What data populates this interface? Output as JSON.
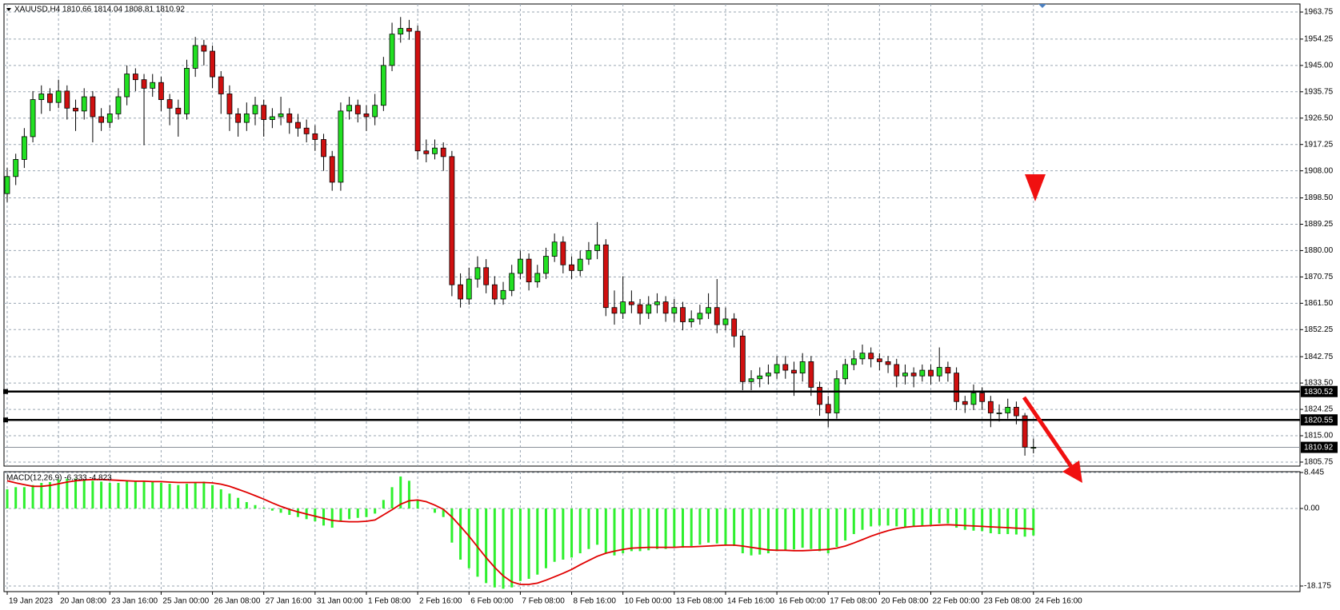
{
  "chart_data": [
    {
      "type": "candlestick",
      "title": "XAUUSD,H4  1810.66 1814.04 1808.81 1810.92",
      "categories": [
        "19 Jan 2023",
        null,
        null,
        null,
        null,
        null,
        "20 Jan 08:00",
        null,
        null,
        null,
        null,
        null,
        "23 Jan 16:00",
        null,
        null,
        null,
        null,
        null,
        "25 Jan 00:00",
        null,
        null,
        null,
        null,
        null,
        "26 Jan 08:00",
        null,
        null,
        null,
        null,
        null,
        "27 Jan 16:00",
        null,
        null,
        null,
        null,
        null,
        "31 Jan 00:00",
        null,
        null,
        null,
        null,
        null,
        "1 Feb 08:00",
        null,
        null,
        null,
        null,
        null,
        "2 Feb 16:00",
        null,
        null,
        null,
        null,
        null,
        "6 Feb 00:00",
        null,
        null,
        null,
        null,
        null,
        "7 Feb 08:00",
        null,
        null,
        null,
        null,
        null,
        "8 Feb 16:00",
        null,
        null,
        null,
        null,
        null,
        "10 Feb 00:00",
        null,
        null,
        null,
        null,
        null,
        "13 Feb 08:00",
        null,
        null,
        null,
        null,
        null,
        "14 Feb 16:00",
        null,
        null,
        null,
        null,
        null,
        "16 Feb 00:00",
        null,
        null,
        null,
        null,
        null,
        "17 Feb 08:00",
        null,
        null,
        null,
        null,
        null,
        "20 Feb 08:00",
        null,
        null,
        null,
        null,
        null,
        "22 Feb 00:00",
        null,
        null,
        null,
        null,
        null,
        "23 Feb 08:00",
        null,
        null,
        null,
        null,
        null,
        "24 Feb 16:00"
      ],
      "open": [
        1900,
        1906,
        1912,
        1920,
        1933,
        1935,
        1932,
        1936,
        1930,
        1929,
        1934,
        1927,
        1925,
        1928,
        1934,
        1942,
        1940,
        1937,
        1939,
        1933,
        1930,
        1928,
        1944,
        1952,
        1950,
        1941,
        1935,
        1928,
        1925,
        1928,
        1931,
        1926,
        1927,
        1928,
        1925,
        1923,
        1921,
        1919,
        1913,
        1904,
        1929,
        1931,
        1928,
        1927,
        1931,
        1945,
        1956,
        1958,
        1957,
        1915,
        1914,
        1916,
        1913,
        1868,
        1863,
        1870,
        1874,
        1868,
        1863,
        1866,
        1872,
        1877,
        1869,
        1872,
        1878,
        1883,
        1875,
        1873,
        1877,
        1880,
        1882,
        1860,
        1858,
        1862,
        1861,
        1858,
        1861,
        1862,
        1858,
        1860,
        1855,
        1856,
        1858,
        1860,
        1854,
        1856,
        1850,
        1834,
        1835,
        1836,
        1837,
        1840,
        1838,
        1837,
        1841,
        1832,
        1826,
        1823,
        1835,
        1840,
        1842,
        1844,
        1842,
        1841,
        1840,
        1836,
        1837,
        1836,
        1838,
        1836,
        1839,
        1837,
        1827,
        1826,
        1830,
        1827,
        1823,
        1823,
        1825,
        1822,
        1810.66
      ],
      "high": [
        1909,
        1914,
        1923,
        1936,
        1938,
        1937,
        1940,
        1938,
        1933,
        1937,
        1936,
        1930,
        1931,
        1937,
        1945,
        1944,
        1942,
        1942,
        1941,
        1935,
        1933,
        1947,
        1955,
        1954,
        1952,
        1943,
        1938,
        1930,
        1932,
        1934,
        1933,
        1930,
        1934,
        1930,
        1928,
        1926,
        1924,
        1921,
        1915,
        1932,
        1934,
        1933,
        1931,
        1935,
        1948,
        1960,
        1962,
        1961,
        1959,
        1919,
        1919,
        1918,
        1915,
        1872,
        1874,
        1878,
        1877,
        1871,
        1869,
        1875,
        1880,
        1879,
        1875,
        1881,
        1886,
        1885,
        1878,
        1880,
        1883,
        1890,
        1884,
        1866,
        1871,
        1866,
        1863,
        1864,
        1865,
        1864,
        1863,
        1862,
        1859,
        1861,
        1865,
        1870,
        1860,
        1858,
        1852,
        1838,
        1839,
        1840,
        1843,
        1843,
        1841,
        1844,
        1843,
        1834,
        1829,
        1838,
        1842,
        1845,
        1847,
        1846,
        1844,
        1843,
        1842,
        1840,
        1839,
        1840,
        1840,
        1846,
        1841,
        1839,
        1829,
        1833,
        1832,
        1829,
        1826,
        1828,
        1827,
        1823,
        1814.04
      ],
      "low": [
        1897,
        1903,
        1909,
        1918,
        1928,
        1929,
        1930,
        1926,
        1922,
        1926,
        1918,
        1922,
        1923,
        1926,
        1931,
        1936,
        1917,
        1934,
        1929,
        1924,
        1920,
        1926,
        1941,
        1945,
        1937,
        1928,
        1922,
        1920,
        1922,
        1924,
        1920,
        1923,
        1924,
        1921,
        1920,
        1918,
        1915,
        1908,
        1901,
        1901,
        1926,
        1925,
        1922,
        1924,
        1929,
        1943,
        1953,
        1954,
        1912,
        1911,
        1912,
        1908,
        1864,
        1860,
        1861,
        1867,
        1865,
        1861,
        1861,
        1864,
        1870,
        1866,
        1867,
        1870,
        1876,
        1872,
        1870,
        1871,
        1875,
        1877,
        1857,
        1854,
        1856,
        1858,
        1854,
        1856,
        1858,
        1855,
        1855,
        1852,
        1853,
        1854,
        1856,
        1851,
        1852,
        1846,
        1831,
        1831,
        1832,
        1833,
        1835,
        1835,
        1829,
        1834,
        1829,
        1822,
        1818,
        1821,
        1833,
        1838,
        1840,
        1839,
        1838,
        1837,
        1832,
        1833,
        1832,
        1834,
        1833,
        1834,
        1834,
        1824,
        1823,
        1824,
        1824,
        1818,
        1820,
        1821,
        1819,
        1808,
        1808.81
      ],
      "close": [
        1906,
        1912,
        1920,
        1933,
        1935,
        1932,
        1936,
        1930,
        1929,
        1934,
        1927,
        1925,
        1928,
        1934,
        1942,
        1940,
        1937,
        1939,
        1933,
        1930,
        1928,
        1944,
        1952,
        1950,
        1941,
        1935,
        1928,
        1925,
        1928,
        1931,
        1926,
        1927,
        1928,
        1925,
        1923,
        1921,
        1919,
        1913,
        1904,
        1929,
        1931,
        1928,
        1927,
        1931,
        1945,
        1956,
        1958,
        1957,
        1915,
        1914,
        1916,
        1913,
        1868,
        1863,
        1870,
        1874,
        1868,
        1863,
        1866,
        1872,
        1877,
        1869,
        1872,
        1878,
        1883,
        1875,
        1873,
        1877,
        1880,
        1882,
        1860,
        1858,
        1862,
        1861,
        1858,
        1861,
        1862,
        1858,
        1860,
        1855,
        1856,
        1858,
        1860,
        1854,
        1856,
        1850,
        1834,
        1835,
        1836,
        1837,
        1840,
        1838,
        1837,
        1841,
        1832,
        1826,
        1823,
        1835,
        1840,
        1842,
        1844,
        1842,
        1841,
        1840,
        1836,
        1837,
        1836,
        1838,
        1836,
        1839,
        1837,
        1827,
        1826,
        1830,
        1827,
        1823,
        1823,
        1825,
        1822,
        1811,
        1810.92
      ],
      "up_color": "#22e022",
      "down_color": "#d01010",
      "ylim": [
        1804.34,
        1966.57
      ],
      "yticks": [
        1963.75,
        1954.25,
        {
          "value": 1945,
          "label": "1945.00"
        },
        1935.75,
        {
          "value": 1926.5,
          "label": "1926.50"
        },
        1917.25,
        {
          "value": 1908,
          "label": "1908.00"
        },
        {
          "value": 1898.5,
          "label": "1898.50"
        },
        1889.25,
        {
          "value": 1880,
          "label": "1880.00"
        },
        1870.75,
        {
          "value": 1861.5,
          "label": "1861.50"
        },
        1852.25,
        1842.75,
        {
          "value": 1833.5,
          "label": "1833.50"
        },
        1824.25,
        {
          "value": 1815,
          "label": "1815.00"
        },
        1805.75
      ],
      "hlines": [
        1830.52,
        1820.55
      ],
      "grid": true
    },
    {
      "type": "macd",
      "title": "MACD(12,26,9) -6.333 -4.823",
      "values": [
        4.5,
        5,
        5,
        5.5,
        6,
        6.2,
        6.8,
        7,
        7,
        6.8,
        6.5,
        6.3,
        6,
        6,
        6.4,
        6.5,
        6.3,
        6.3,
        6,
        5.8,
        5.5,
        5.8,
        6.2,
        6.3,
        5.5,
        4.5,
        3.5,
        2.5,
        1.5,
        0.8,
        0.2,
        -0.5,
        -1,
        -1.5,
        -2,
        -2.5,
        -3,
        -4,
        -4.5,
        -3,
        -2.5,
        -2.2,
        -2,
        -1.2,
        2,
        5,
        7.5,
        6.5,
        2,
        0,
        -1,
        -2,
        -8,
        -12,
        -14,
        -16,
        -17.5,
        -18.5,
        -18.8,
        -18.5,
        -17,
        -16.5,
        -15.5,
        -14,
        -12.5,
        -12,
        -11.5,
        -10.5,
        -9.5,
        -8.5,
        -10.5,
        -11,
        -10.5,
        -10,
        -10,
        -9.8,
        -9.5,
        -9.5,
        -9,
        -9.2,
        -8.8,
        -8.5,
        -8,
        -8.2,
        -8.5,
        -8.8,
        -10.5,
        -11,
        -10.8,
        -10.5,
        -10,
        -9.8,
        -9.6,
        -9.2,
        -9.5,
        -10,
        -10.5,
        -9,
        -7.5,
        -6,
        -5,
        -4.2,
        -4,
        -4,
        -4.2,
        -4.3,
        -4.2,
        -4,
        -3.8,
        -3.5,
        -3.5,
        -4.5,
        -5,
        -5.2,
        -5.3,
        -5.8,
        -6,
        -6,
        -6.1,
        -6.6,
        -6.333
      ],
      "signal": [
        6.5,
        6,
        5.6,
        5.2,
        5.2,
        5.4,
        5.8,
        6.2,
        6.5,
        6.7,
        6.8,
        6.8,
        6.7,
        6.6,
        6.5,
        6.4,
        6.4,
        6.3,
        6.3,
        6.2,
        6.1,
        6.1,
        6.1,
        6.1,
        6,
        5.7,
        5.2,
        4.5,
        3.8,
        3,
        2.2,
        1.3,
        0.5,
        -0.2,
        -0.8,
        -1.3,
        -1.8,
        -2.3,
        -2.8,
        -3,
        -3.1,
        -3.1,
        -3,
        -2.7,
        -1.5,
        -0.3,
        1,
        1.8,
        2,
        1.6,
        0.8,
        -0.2,
        -2,
        -4.2,
        -6.5,
        -9,
        -11.5,
        -13.8,
        -15.8,
        -17.2,
        -17.8,
        -17.8,
        -17.5,
        -16.8,
        -16,
        -15.2,
        -14.3,
        -13.2,
        -12.2,
        -11.2,
        -10.5,
        -10,
        -9.6,
        -9.3,
        -9.2,
        -9.1,
        -9.1,
        -9.1,
        -9.1,
        -9,
        -9,
        -8.9,
        -8.8,
        -8.7,
        -8.6,
        -8.6,
        -8.8,
        -9.1,
        -9.4,
        -9.7,
        -9.8,
        -9.8,
        -9.9,
        -9.9,
        -9.8,
        -9.7,
        -9.6,
        -9.3,
        -8.8,
        -8.1,
        -7.3,
        -6.5,
        -5.8,
        -5.2,
        -4.7,
        -4.4,
        -4.2,
        -4.1,
        -4,
        -3.9,
        -3.8,
        -3.9,
        -4,
        -4.1,
        -4.2,
        -4.3,
        -4.4,
        -4.5,
        -4.6,
        -4.7,
        -4.823
      ],
      "color": "#2ef02e",
      "signal_color": "#e00000",
      "ylim": [
        -19.49,
        8.63
      ],
      "yticks": [
        8.445,
        {
          "value": 0,
          "label": "0.00"
        },
        -18.175
      ],
      "grid": true
    }
  ]
}
